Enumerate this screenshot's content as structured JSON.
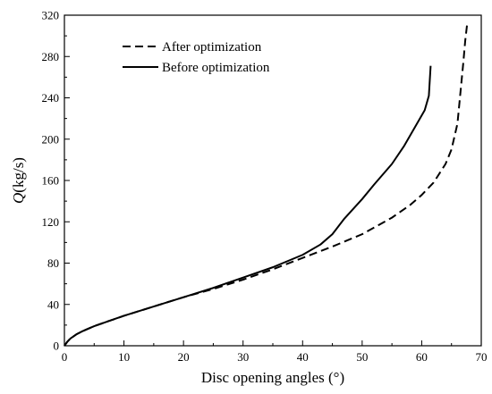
{
  "chart_data": {
    "type": "line",
    "xlabel": "Disc opening angles (°)",
    "ylabel_italic": "Q",
    "ylabel_rest": "(kg/s)",
    "xlim": [
      0,
      70
    ],
    "ylim": [
      0,
      320
    ],
    "xticks": [
      0,
      10,
      20,
      30,
      40,
      50,
      60,
      70
    ],
    "yticks": [
      0,
      40,
      80,
      120,
      160,
      200,
      240,
      280,
      320
    ],
    "grid": false,
    "legend_position": "top-left",
    "series": [
      {
        "name": "After optimization",
        "style": "dashed",
        "color": "#000000",
        "x": [
          0,
          0.5,
          1,
          2,
          3,
          5,
          8,
          10,
          15,
          20,
          25,
          30,
          35,
          40,
          45,
          50,
          55,
          58,
          60,
          62,
          64,
          65,
          66,
          66.5,
          67,
          67.3,
          67.6
        ],
        "y": [
          0,
          4,
          7,
          11,
          14,
          19,
          25,
          29,
          38,
          47,
          55,
          64,
          74,
          85,
          96,
          108,
          124,
          136,
          146,
          158,
          176,
          190,
          215,
          245,
          275,
          295,
          310
        ]
      },
      {
        "name": "Before optimization",
        "style": "solid",
        "color": "#000000",
        "x": [
          0,
          0.5,
          1,
          2,
          3,
          5,
          8,
          10,
          15,
          20,
          25,
          30,
          35,
          40,
          43,
          45,
          47,
          50,
          52,
          55,
          57,
          59,
          60.5,
          61.2,
          61.5
        ],
        "y": [
          0,
          4,
          7,
          11,
          14,
          19,
          25,
          29,
          38,
          47,
          56,
          66,
          76,
          88,
          98,
          108,
          123,
          142,
          156,
          176,
          193,
          213,
          228,
          242,
          271
        ]
      }
    ]
  }
}
